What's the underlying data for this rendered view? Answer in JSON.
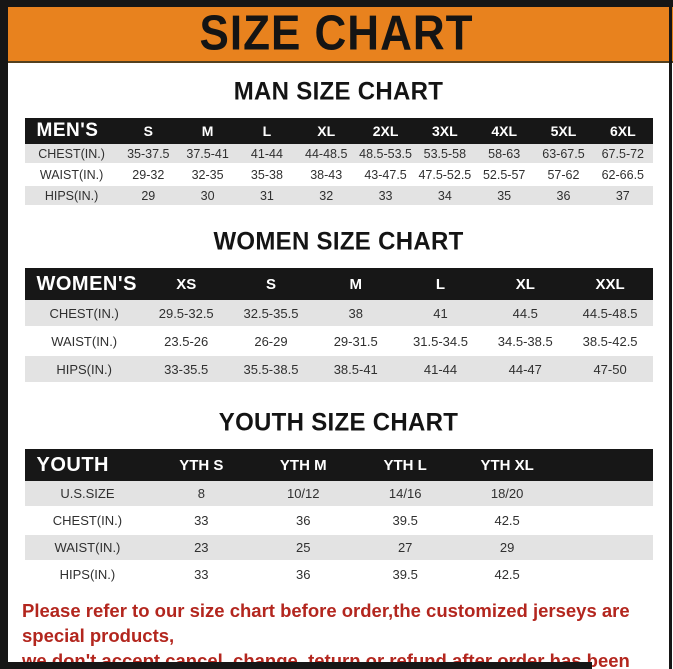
{
  "banner": {
    "title": "SIZE CHART"
  },
  "colors": {
    "banner_bg": "#e8821e",
    "frame_black": "#161616",
    "table_header_bg": "#171717",
    "row_alt_gray": "#e3e3e3",
    "note_red": "#b3261e"
  },
  "sections": [
    {
      "heading": "MAN SIZE CHART",
      "table": {
        "label": "MEN'S",
        "columns": [
          "S",
          "M",
          "L",
          "XL",
          "2XL",
          "3XL",
          "4XL",
          "5XL",
          "6XL"
        ],
        "rows": [
          {
            "label": "CHEST(IN.)",
            "values": [
              "35-37.5",
              "37.5-41",
              "41-44",
              "44-48.5",
              "48.5-53.5",
              "53.5-58",
              "58-63",
              "63-67.5",
              "67.5-72"
            ]
          },
          {
            "label": "WAIST(IN.)",
            "values": [
              "29-32",
              "32-35",
              "35-38",
              "38-43",
              "43-47.5",
              "47.5-52.5",
              "52.5-57",
              "57-62",
              "62-66.5"
            ]
          },
          {
            "label": "HIPS(IN.)",
            "values": [
              "29",
              "30",
              "31",
              "32",
              "33",
              "34",
              "35",
              "36",
              "37"
            ]
          }
        ]
      }
    },
    {
      "heading": "WOMEN SIZE CHART",
      "table": {
        "label": "WOMEN'S",
        "columns": [
          "XS",
          "S",
          "M",
          "L",
          "XL",
          "XXL"
        ],
        "rows": [
          {
            "label": "CHEST(IN.)",
            "values": [
              "29.5-32.5",
              "32.5-35.5",
              "38",
              "41",
              "44.5",
              "44.5-48.5"
            ]
          },
          {
            "label": "WAIST(IN.)",
            "values": [
              "23.5-26",
              "26-29",
              "29-31.5",
              "31.5-34.5",
              "34.5-38.5",
              "38.5-42.5"
            ]
          },
          {
            "label": "HIPS(IN.)",
            "values": [
              "33-35.5",
              "35.5-38.5",
              "38.5-41",
              "41-44",
              "44-47",
              "47-50"
            ]
          }
        ]
      }
    },
    {
      "heading": "YOUTH SIZE CHART",
      "table": {
        "label": "YOUTH",
        "columns": [
          "YTH S",
          "YTH M",
          "YTH L",
          "YTH XL"
        ],
        "rows": [
          {
            "label": "U.S.SIZE",
            "values": [
              "8",
              "10/12",
              "14/16",
              "18/20"
            ]
          },
          {
            "label": "CHEST(IN.)",
            "values": [
              "33",
              "36",
              "39.5",
              "42.5"
            ]
          },
          {
            "label": "WAIST(IN.)",
            "values": [
              "23",
              "25",
              "27",
              "29"
            ]
          },
          {
            "label": "HIPS(IN.)",
            "values": [
              "33",
              "36",
              "39.5",
              "42.5"
            ]
          }
        ]
      }
    }
  ],
  "footer": {
    "line1": "Please refer to our size chart before order,the customized jerseys are special products,",
    "line2": "we don't accept cancel, change, teturn or refund after order has been placed!"
  }
}
